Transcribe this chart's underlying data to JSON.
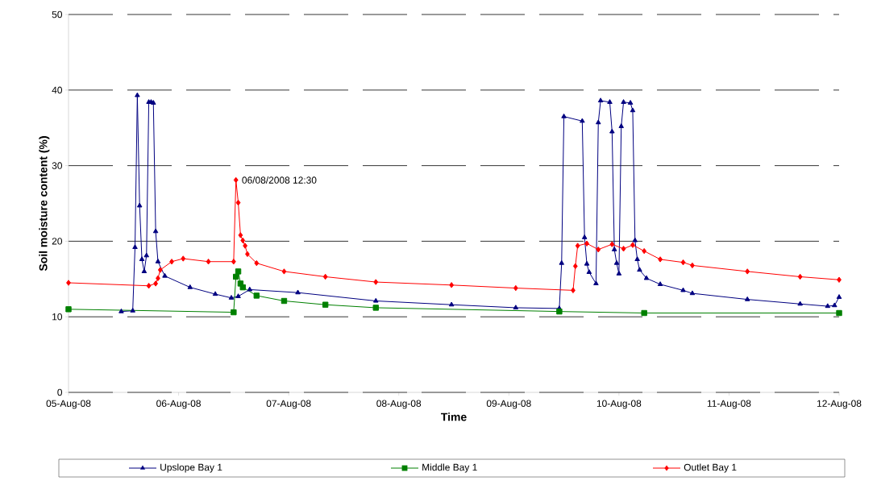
{
  "chart_data": {
    "type": "line",
    "xlabel": "Time",
    "ylabel": "Soil moisture content (%)",
    "xlim": [
      "2008-08-05T00:00",
      "2008-08-12T00:00"
    ],
    "ylim": [
      0,
      50
    ],
    "xticks": [
      {
        "value": "2008-08-05",
        "label": "05-Aug-08"
      },
      {
        "value": "2008-08-06",
        "label": "06-Aug-08"
      },
      {
        "value": "2008-08-07",
        "label": "07-Aug-08"
      },
      {
        "value": "2008-08-08",
        "label": "08-Aug-08"
      },
      {
        "value": "2008-08-09",
        "label": "09-Aug-08"
      },
      {
        "value": "2008-08-10",
        "label": "10-Aug-08"
      },
      {
        "value": "2008-08-11",
        "label": "11-Aug-08"
      },
      {
        "value": "2008-08-12",
        "label": "12-Aug-08"
      }
    ],
    "yticks": [
      0,
      10,
      20,
      30,
      40,
      50
    ],
    "grid": "y",
    "legend": "bottom",
    "line_style": "solid",
    "annotations": [
      {
        "text": "06/08/2008 12:30",
        "x": "2008-08-06T12:30",
        "y": 28.1
      }
    ],
    "series": [
      {
        "name": "Upslope Bay 1",
        "color": "#000080",
        "marker": "triangle",
        "x": [
          "2008-08-05T11:30",
          "2008-08-05T14:00",
          "2008-08-05T14:30",
          "2008-08-05T15:00",
          "2008-08-05T15:30",
          "2008-08-05T16:00",
          "2008-08-05T16:30",
          "2008-08-05T17:00",
          "2008-08-05T17:30",
          "2008-08-05T18:00",
          "2008-08-05T18:30",
          "2008-08-05T19:00",
          "2008-08-05T19:30",
          "2008-08-05T21:00",
          "2008-08-06T02:30",
          "2008-08-06T08:00",
          "2008-08-06T11:30",
          "2008-08-06T13:00",
          "2008-08-06T15:30",
          "2008-08-07T02:00",
          "2008-08-07T19:00",
          "2008-08-08T11:30",
          "2008-08-09T01:30",
          "2008-08-09T11:00",
          "2008-08-09T11:30",
          "2008-08-09T12:00",
          "2008-08-09T16:00",
          "2008-08-09T16:30",
          "2008-08-09T17:00",
          "2008-08-09T17:30",
          "2008-08-09T19:00",
          "2008-08-09T19:30",
          "2008-08-09T20:00",
          "2008-08-09T22:00",
          "2008-08-09T22:30",
          "2008-08-09T23:00",
          "2008-08-09T23:30",
          "2008-08-10T00:00",
          "2008-08-10T00:30",
          "2008-08-10T01:00",
          "2008-08-10T02:30",
          "2008-08-10T03:00",
          "2008-08-10T03:30",
          "2008-08-10T04:00",
          "2008-08-10T04:30",
          "2008-08-10T06:00",
          "2008-08-10T09:00",
          "2008-08-10T14:00",
          "2008-08-10T16:00",
          "2008-08-11T04:00",
          "2008-08-11T15:30",
          "2008-08-11T21:30",
          "2008-08-11T23:00",
          "2008-08-12T00:00"
        ],
        "values": [
          10.7,
          10.8,
          19.2,
          39.3,
          24.7,
          17.6,
          16.0,
          18.1,
          38.4,
          38.4,
          38.3,
          21.3,
          17.3,
          15.4,
          13.9,
          13.0,
          12.5,
          12.7,
          13.6,
          13.2,
          12.1,
          11.6,
          11.2,
          11.1,
          17.1,
          36.5,
          35.9,
          20.5,
          17.0,
          15.9,
          14.4,
          35.7,
          38.6,
          38.4,
          34.5,
          18.9,
          17.1,
          15.7,
          35.2,
          38.4,
          38.3,
          37.3,
          20.1,
          17.6,
          16.2,
          15.1,
          14.3,
          13.5,
          13.1,
          12.3,
          11.7,
          11.4,
          11.5,
          12.6
        ]
      },
      {
        "name": "Middle Bay 1",
        "color": "#008000",
        "marker": "square",
        "x": [
          "2008-08-05T00:00",
          "2008-08-06T12:00",
          "2008-08-06T12:30",
          "2008-08-06T13:00",
          "2008-08-06T13:30",
          "2008-08-06T14:00",
          "2008-08-06T17:00",
          "2008-08-06T23:00",
          "2008-08-07T08:00",
          "2008-08-07T19:00",
          "2008-08-09T11:00",
          "2008-08-10T05:30",
          "2008-08-12T00:00"
        ],
        "values": [
          11.0,
          10.6,
          15.3,
          16.0,
          14.4,
          13.9,
          12.8,
          12.1,
          11.6,
          11.2,
          10.7,
          10.5,
          10.5
        ]
      },
      {
        "name": "Outlet Bay 1",
        "color": "#ff0000",
        "marker": "diamond",
        "x": [
          "2008-08-05T00:00",
          "2008-08-05T17:30",
          "2008-08-05T19:00",
          "2008-08-05T19:30",
          "2008-08-05T20:00",
          "2008-08-05T22:30",
          "2008-08-06T01:00",
          "2008-08-06T06:30",
          "2008-08-06T12:00",
          "2008-08-06T12:30",
          "2008-08-06T13:00",
          "2008-08-06T13:30",
          "2008-08-06T14:00",
          "2008-08-06T14:30",
          "2008-08-06T15:00",
          "2008-08-06T17:00",
          "2008-08-06T23:00",
          "2008-08-07T08:00",
          "2008-08-07T19:00",
          "2008-08-08T11:30",
          "2008-08-09T01:30",
          "2008-08-09T14:00",
          "2008-08-09T14:30",
          "2008-08-09T15:00",
          "2008-08-09T17:00",
          "2008-08-09T19:30",
          "2008-08-09T22:30",
          "2008-08-10T01:00",
          "2008-08-10T03:00",
          "2008-08-10T05:30",
          "2008-08-10T09:00",
          "2008-08-10T14:00",
          "2008-08-10T16:00",
          "2008-08-11T04:00",
          "2008-08-11T15:30",
          "2008-08-12T00:00"
        ],
        "values": [
          14.5,
          14.1,
          14.4,
          15.1,
          16.2,
          17.3,
          17.7,
          17.3,
          17.3,
          28.1,
          25.1,
          20.8,
          20.1,
          19.4,
          18.3,
          17.1,
          16.0,
          15.3,
          14.6,
          14.2,
          13.8,
          13.5,
          16.7,
          19.4,
          19.7,
          18.9,
          19.6,
          19.0,
          19.5,
          18.7,
          17.6,
          17.2,
          16.8,
          16.0,
          15.3,
          14.9
        ]
      }
    ]
  }
}
